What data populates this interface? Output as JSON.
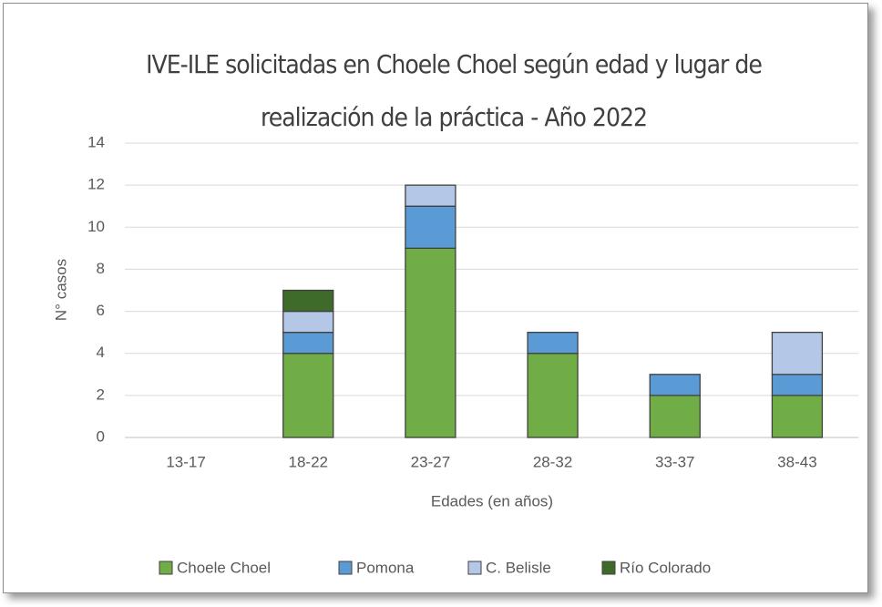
{
  "chart_data": {
    "type": "stacked_bar",
    "title": [
      "IVE-ILE solicitadas en Choele Choel según edad y lugar de",
      "realización de la práctica - Año 2022"
    ],
    "y_label": "N° casos",
    "x_label": "Edades (en años)",
    "categories": [
      "13-17",
      "18-22",
      "23-27",
      "28-32",
      "33-37",
      "38-43"
    ],
    "series": [
      {
        "name": "Choele Choel",
        "color": "#70ad47",
        "values": [
          0,
          4,
          9,
          4,
          2,
          2
        ]
      },
      {
        "name": "Pomona",
        "color": "#5b9bd5",
        "values": [
          0,
          1,
          2,
          1,
          1,
          1
        ]
      },
      {
        "name": "C. Belisle",
        "color": "#b4c7e7",
        "values": [
          0,
          1,
          1,
          0,
          0,
          2
        ]
      },
      {
        "name": "Río Colorado",
        "color": "#3f6b2a",
        "values": [
          0,
          1,
          0,
          0,
          0,
          0
        ]
      }
    ],
    "ylim": [
      0,
      14
    ],
    "yticks": [
      0,
      2,
      4,
      6,
      8,
      10,
      12,
      14
    ],
    "grid": true,
    "legend": "bottom"
  }
}
